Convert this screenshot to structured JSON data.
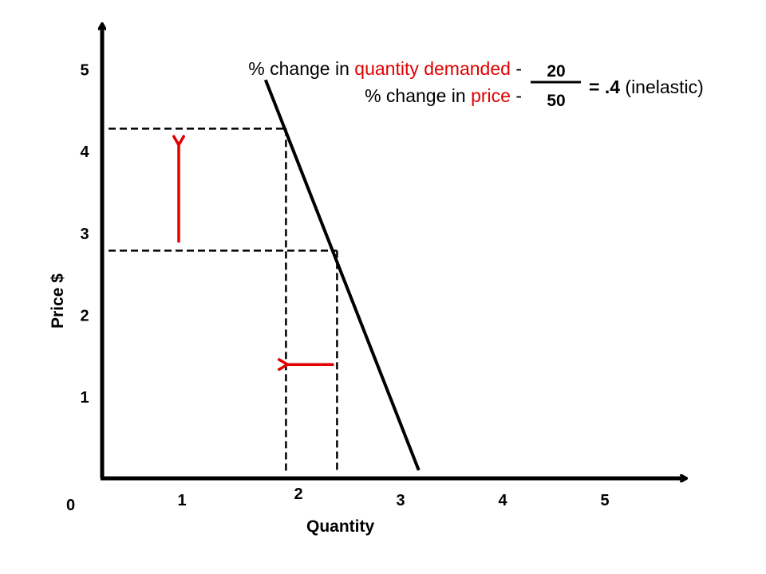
{
  "chart_data": {
    "type": "line",
    "xlabel": "Quantity",
    "ylabel": "Price $",
    "origin_label": "0",
    "x_ticks": [
      "1",
      "2",
      "3",
      "4",
      "5"
    ],
    "y_ticks": [
      "1",
      "2",
      "3",
      "4",
      "5"
    ],
    "xlim": [
      0,
      5.5
    ],
    "ylim": [
      0,
      5.5
    ],
    "series": [
      {
        "points": [
          [
            1.6,
            4.9
          ],
          [
            3.1,
            0.1
          ]
        ]
      }
    ],
    "reference_points": [
      {
        "x": 1.8,
        "y": 4.3
      },
      {
        "x": 2.3,
        "y": 2.8
      }
    ],
    "price_arrow": {
      "x": 0.75,
      "from": 2.9,
      "to": 4.1
    },
    "quantity_arrow": {
      "y": 1.4,
      "from": 2.3,
      "to": 1.8
    }
  },
  "formula": {
    "numerator_prefix": "% change in ",
    "numerator_highlight": "quantity demanded",
    "numerator_suffix": " -",
    "denominator_prefix": "% change in ",
    "denominator_highlight": "price",
    "denominator_suffix": " -",
    "frac_top": "20",
    "frac_bottom": "50",
    "result_bold": "= .4",
    "result_plain": " (inelastic)"
  },
  "colors": {
    "axis": "#000000",
    "demand_line": "#000000",
    "arrow": "#e00000",
    "highlight": "#e00000"
  }
}
